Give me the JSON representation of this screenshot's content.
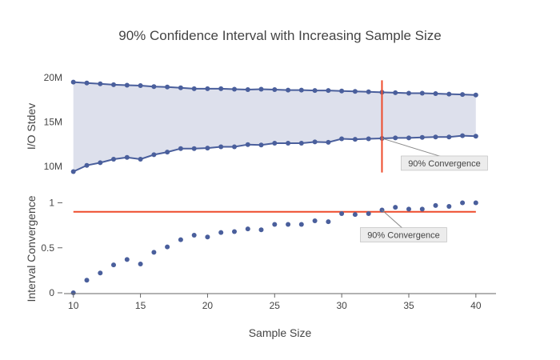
{
  "chart_data": {
    "title": "90% Confidence Interval with Increasing Sample Size",
    "xlabel": "Sample Size",
    "xlim": [
      9.3,
      41.5
    ],
    "xticks": [
      10,
      15,
      20,
      25,
      30,
      35,
      40
    ],
    "x": [
      10,
      11,
      12,
      13,
      14,
      15,
      16,
      17,
      18,
      19,
      20,
      21,
      22,
      23,
      24,
      25,
      26,
      27,
      28,
      29,
      30,
      31,
      32,
      33,
      34,
      35,
      36,
      37,
      38,
      39,
      40
    ],
    "colors": {
      "series": "#4a5f9c",
      "band": "#dde0ec",
      "annotation_line": "#ee4b2b",
      "axis": "#666666",
      "annot_box": "#ececec",
      "annot_border": "#aaaaaa"
    },
    "panels": [
      {
        "name": "ci-panel",
        "type": "line",
        "ylabel": "I/O Stdev",
        "ylim": [
          8.0,
          21.0
        ],
        "yticks": [
          10,
          15,
          20
        ],
        "ytick_labels": [
          "10M",
          "15M",
          "20M"
        ],
        "series": [
          {
            "name": "upper",
            "values": [
              19.5,
              19.4,
              19.3,
              19.2,
              19.15,
              19.1,
              19.0,
              18.95,
              18.85,
              18.75,
              18.75,
              18.75,
              18.7,
              18.65,
              18.7,
              18.65,
              18.6,
              18.6,
              18.55,
              18.55,
              18.5,
              18.45,
              18.4,
              18.35,
              18.3,
              18.25,
              18.25,
              18.2,
              18.15,
              18.1,
              18.05
            ]
          },
          {
            "name": "lower",
            "values": [
              9.4,
              10.1,
              10.4,
              10.8,
              11.0,
              10.8,
              11.3,
              11.6,
              12.0,
              12.0,
              12.05,
              12.2,
              12.2,
              12.45,
              12.4,
              12.6,
              12.6,
              12.6,
              12.75,
              12.7,
              13.1,
              13.05,
              13.1,
              13.15,
              13.2,
              13.2,
              13.25,
              13.3,
              13.3,
              13.45,
              13.4
            ]
          }
        ],
        "vline": {
          "x": 33,
          "y_range": [
            9.3,
            19.7
          ]
        },
        "annotation": {
          "text": "90% Convergence",
          "x": 33,
          "y": 13.15
        }
      },
      {
        "name": "convergence-panel",
        "type": "scatter",
        "ylabel": "Interval Convergence",
        "ylim": [
          0.0,
          1.12
        ],
        "yticks": [
          0,
          0.5,
          1
        ],
        "ytick_labels": [
          "0",
          "0.5",
          "1"
        ],
        "series": [
          {
            "name": "convergence",
            "values": [
              0.0,
              0.14,
              0.22,
              0.31,
              0.37,
              0.32,
              0.45,
              0.51,
              0.59,
              0.64,
              0.62,
              0.67,
              0.68,
              0.71,
              0.7,
              0.76,
              0.76,
              0.76,
              0.8,
              0.79,
              0.88,
              0.87,
              0.88,
              0.92,
              0.95,
              0.93,
              0.93,
              0.97,
              0.96,
              1.0,
              1.0
            ]
          }
        ],
        "hline": {
          "y": 0.9,
          "x_range": [
            10,
            40
          ]
        },
        "annotation": {
          "text": "90% Convergence",
          "x": 33,
          "y": 0.92
        }
      }
    ]
  }
}
